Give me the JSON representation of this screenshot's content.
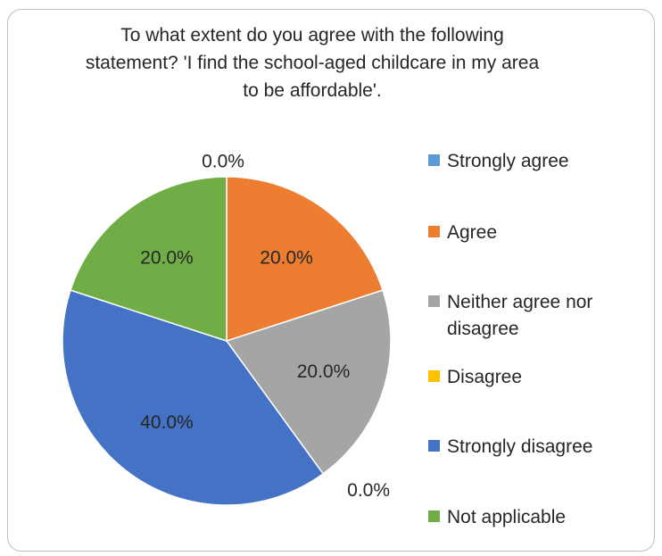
{
  "chart_data": {
    "type": "pie",
    "title": "To what extent do you agree with the following statement? 'I find the school-aged childcare in my area to be affordable'.",
    "categories": [
      "Strongly agree",
      "Agree",
      "Neither agree nor disagree",
      "Disagree",
      "Strongly disagree",
      "Not applicable"
    ],
    "values": [
      0.0,
      20.0,
      20.0,
      0.0,
      40.0,
      20.0
    ],
    "data_labels": [
      "0.0%",
      "20.0%",
      "20.0%",
      "0.0%",
      "40.0%",
      "20.0%"
    ],
    "colors": [
      "#5b9bd5",
      "#ed7d31",
      "#a5a5a5",
      "#ffc000",
      "#4472c4",
      "#70ad47"
    ],
    "legend_position": "right"
  }
}
